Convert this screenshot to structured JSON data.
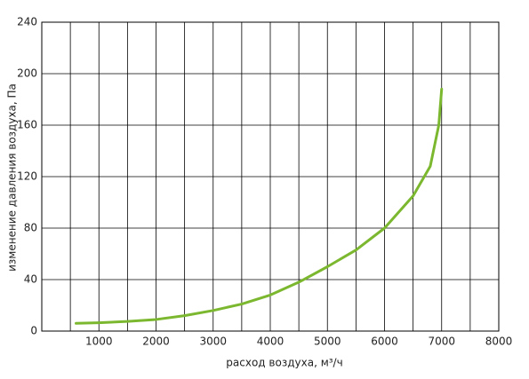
{
  "chart_data": {
    "type": "line",
    "x_label": "расход воздуха, м³/ч",
    "y_label": "изменение давления воздуха, Па",
    "x": [
      600,
      1000,
      1500,
      2000,
      2500,
      3000,
      3500,
      4000,
      4500,
      5000,
      5500,
      6000,
      6500,
      6800,
      6950,
      7000
    ],
    "series": [
      {
        "color": "#7cb82f",
        "values": [
          6,
          6.5,
          7.5,
          9,
          12,
          16,
          21,
          28,
          38,
          50,
          63,
          80,
          105,
          128,
          160,
          188
        ]
      }
    ],
    "xlim": [
      0,
      8000
    ],
    "xticks": [
      1000,
      2000,
      3000,
      4000,
      5000,
      6000,
      7000,
      8000
    ],
    "ylim": [
      0,
      240
    ],
    "yticks": [
      0,
      40,
      80,
      120,
      160,
      200,
      240
    ],
    "grid": true
  }
}
